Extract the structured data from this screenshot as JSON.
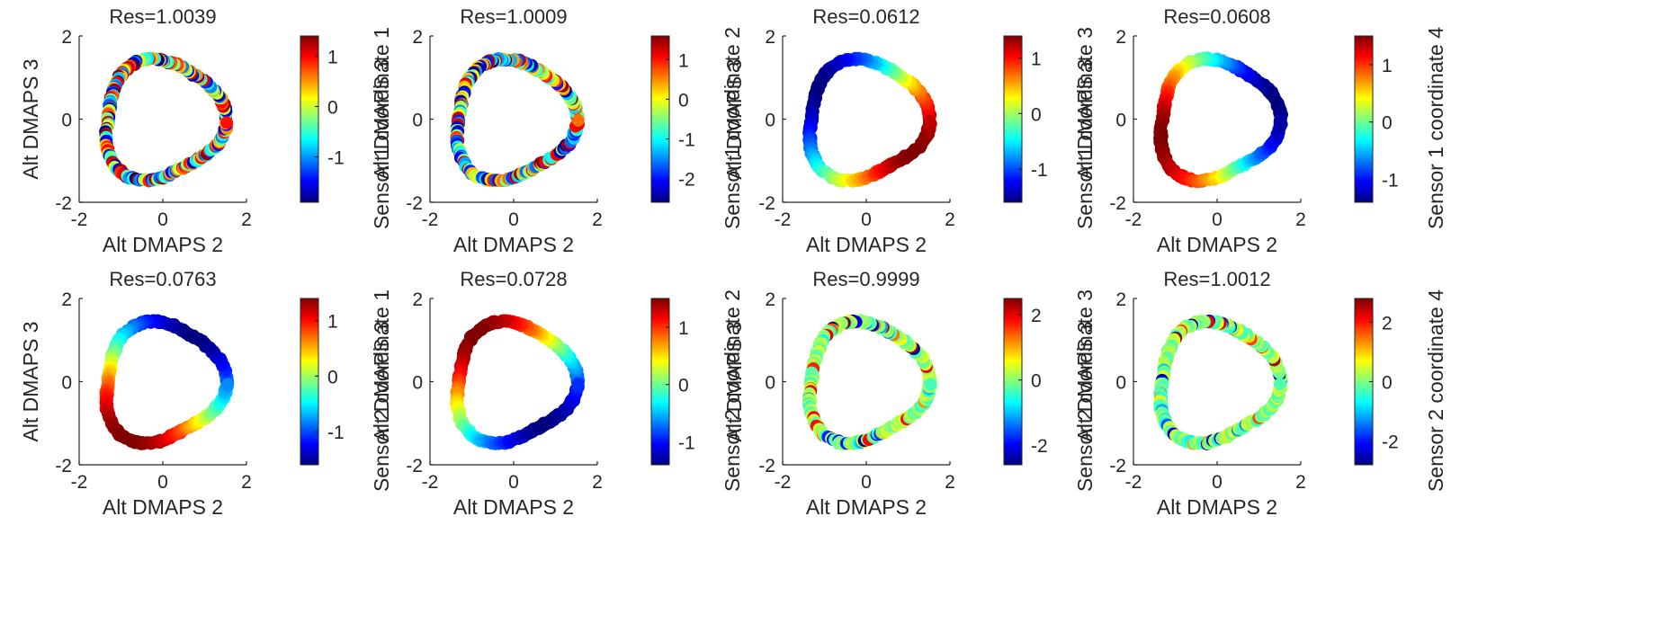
{
  "figure": {
    "colormap": "jet",
    "colormap_stops": [
      "#00007f",
      "#0000ff",
      "#007fff",
      "#00ffff",
      "#7fff7f",
      "#ffff00",
      "#ff7f00",
      "#ff0000",
      "#7f0000"
    ]
  },
  "chart_data": [
    {
      "type": "scatter",
      "title": "Res=1.0039",
      "xlabel": "Alt DMAPS 2",
      "ylabel": "Alt DMAPS 3",
      "xlim": [
        -2,
        2
      ],
      "ylim": [
        -2,
        2
      ],
      "xticks": [
        -2,
        0,
        2
      ],
      "yticks": [
        -2,
        0,
        2
      ],
      "colorbar": {
        "label": "Sensor 1 coordinate 1",
        "range": [
          -1.9,
          1.4
        ],
        "ticks": [
          1,
          0,
          -1
        ]
      },
      "color_pattern": "noisy",
      "seed": 11
    },
    {
      "type": "scatter",
      "title": "Res=1.0009",
      "xlabel": "Alt DMAPS 2",
      "ylabel": "Alt DMAPS 3",
      "xlim": [
        -2,
        2
      ],
      "ylim": [
        -2,
        2
      ],
      "xticks": [
        -2,
        0,
        2
      ],
      "yticks": [
        -2,
        0,
        2
      ],
      "colorbar": {
        "label": "Sensor 1 coordinate 2",
        "range": [
          -2.6,
          1.6
        ],
        "ticks": [
          1,
          0,
          -1,
          -2
        ]
      },
      "color_pattern": "noisy",
      "seed": 23
    },
    {
      "type": "scatter",
      "title": "Res=0.0612",
      "xlabel": "Alt DMAPS 2",
      "ylabel": "Alt DMAPS 3",
      "xlim": [
        -2,
        2
      ],
      "ylim": [
        -2,
        2
      ],
      "xticks": [
        -2,
        0,
        2
      ],
      "yticks": [
        -2,
        0,
        2
      ],
      "colorbar": {
        "label": "Sensor 1 coordinate 3",
        "range": [
          -1.6,
          1.4
        ],
        "ticks": [
          1,
          0,
          -1
        ]
      },
      "color_pattern": "smooth",
      "phase_deg": 330
    },
    {
      "type": "scatter",
      "title": "Res=0.0608",
      "xlabel": "Alt DMAPS 2",
      "ylabel": "Alt DMAPS 3",
      "xlim": [
        -2,
        2
      ],
      "ylim": [
        -2,
        2
      ],
      "xticks": [
        -2,
        0,
        2
      ],
      "yticks": [
        -2,
        0,
        2
      ],
      "colorbar": {
        "label": "Sensor 1 coordinate 4",
        "range": [
          -1.4,
          1.5
        ],
        "ticks": [
          1,
          0,
          -1
        ]
      },
      "color_pattern": "smooth",
      "phase_deg": 200
    },
    {
      "type": "scatter",
      "title": "Res=0.0763",
      "xlabel": "Alt DMAPS 2",
      "ylabel": "Alt DMAPS 3",
      "xlim": [
        -2,
        2
      ],
      "ylim": [
        -2,
        2
      ],
      "xticks": [
        -2,
        0,
        2
      ],
      "yticks": [
        -2,
        0,
        2
      ],
      "colorbar": {
        "label": "Sensor 2 coordinate 1",
        "range": [
          -1.6,
          1.4
        ],
        "ticks": [
          1,
          0,
          -1
        ]
      },
      "color_pattern": "smooth",
      "phase_deg": 240
    },
    {
      "type": "scatter",
      "title": "Res=0.0728",
      "xlabel": "Alt DMAPS 2",
      "ylabel": "Alt DMAPS 3",
      "xlim": [
        -2,
        2
      ],
      "ylim": [
        -2,
        2
      ],
      "xticks": [
        -2,
        0,
        2
      ],
      "yticks": [
        -2,
        0,
        2
      ],
      "colorbar": {
        "label": "Sensor 2 coordinate 2",
        "range": [
          -1.4,
          1.5
        ],
        "ticks": [
          1,
          0,
          -1
        ]
      },
      "color_pattern": "smooth",
      "phase_deg": 130
    },
    {
      "type": "scatter",
      "title": "Res=0.9999",
      "xlabel": "Alt DMAPS 2",
      "ylabel": "Alt DMAPS 3",
      "xlim": [
        -2,
        2
      ],
      "ylim": [
        -2,
        2
      ],
      "xticks": [
        -2,
        0,
        2
      ],
      "yticks": [
        -2,
        0,
        2
      ],
      "colorbar": {
        "label": "Sensor 2 coordinate 3",
        "range": [
          -2.6,
          2.5
        ],
        "ticks": [
          2,
          0,
          -2
        ]
      },
      "color_pattern": "noisy_center",
      "seed": 37
    },
    {
      "type": "scatter",
      "title": "Res=1.0012",
      "xlabel": "Alt DMAPS 2",
      "ylabel": "Alt DMAPS 3",
      "xlim": [
        -2,
        2
      ],
      "ylim": [
        -2,
        2
      ],
      "xticks": [
        -2,
        0,
        2
      ],
      "yticks": [
        -2,
        0,
        2
      ],
      "colorbar": {
        "label": "Sensor 2 coordinate 4",
        "range": [
          -2.8,
          2.8
        ],
        "ticks": [
          2,
          0,
          -2
        ]
      },
      "color_pattern": "noisy_center",
      "seed": 53
    }
  ]
}
